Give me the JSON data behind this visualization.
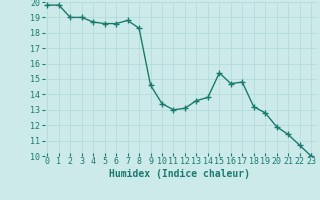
{
  "x": [
    0,
    1,
    2,
    3,
    4,
    5,
    6,
    7,
    8,
    9,
    10,
    11,
    12,
    13,
    14,
    15,
    16,
    17,
    18,
    19,
    20,
    21,
    22,
    23
  ],
  "y": [
    19.8,
    19.8,
    19.0,
    19.0,
    18.7,
    18.6,
    18.6,
    18.8,
    18.3,
    14.6,
    13.4,
    13.0,
    13.1,
    13.6,
    13.8,
    15.4,
    14.7,
    14.8,
    13.2,
    12.8,
    11.9,
    11.4,
    10.7,
    10.0
  ],
  "line_color": "#1a7a6e",
  "marker": "+",
  "marker_size": 4,
  "line_width": 1.0,
  "bg_color": "#cceaea",
  "grid_color": "#b0d8d8",
  "xlabel": "Humidex (Indice chaleur)",
  "xlabel_fontsize": 7,
  "xlabel_color": "#1a7a6e",
  "xlabel_bold": true,
  "ylim": [
    10,
    20
  ],
  "xlim": [
    -0.5,
    23.5
  ],
  "yticks": [
    10,
    11,
    12,
    13,
    14,
    15,
    16,
    17,
    18,
    19,
    20
  ],
  "xticks": [
    0,
    1,
    2,
    3,
    4,
    5,
    6,
    7,
    8,
    9,
    10,
    11,
    12,
    13,
    14,
    15,
    16,
    17,
    18,
    19,
    20,
    21,
    22,
    23
  ],
  "tick_fontsize": 6,
  "tick_color": "#1a7a6e"
}
